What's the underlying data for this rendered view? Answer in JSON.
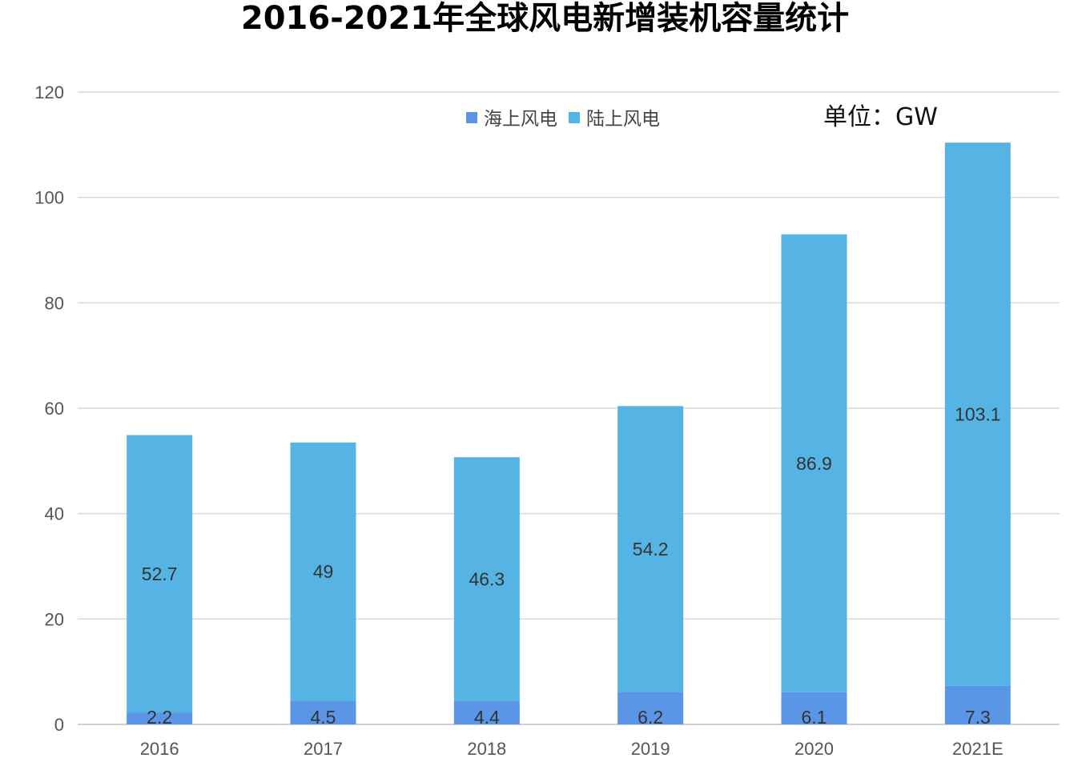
{
  "chart_data": {
    "type": "bar",
    "stacked": true,
    "title": "2016-2021年全球风电新增装机容量统计",
    "unit_label": "单位：GW",
    "categories": [
      "2016",
      "2017",
      "2018",
      "2019",
      "2020",
      "2021E"
    ],
    "series": [
      {
        "name": "海上风电",
        "values": [
          2.2,
          4.5,
          4.4,
          6.2,
          6.1,
          7.3
        ],
        "color": "#5B95E6"
      },
      {
        "name": "陆上风电",
        "values": [
          52.7,
          49,
          46.3,
          54.2,
          86.9,
          103.1
        ],
        "color": "#56B4E4"
      }
    ],
    "data_labels": {
      "海上风电": [
        "2.2",
        "4.5",
        "4.4",
        "6.2",
        "6.1",
        "7.3"
      ],
      "陆上风电": [
        "52.7",
        "49",
        "46.3",
        "54.2",
        "86.9",
        "103.1"
      ]
    },
    "ylim": [
      0,
      120
    ],
    "yticks": [
      0,
      20,
      40,
      60,
      80,
      100,
      120
    ],
    "grid": true,
    "legend_position": "top-center",
    "xlabel": "",
    "ylabel": ""
  }
}
